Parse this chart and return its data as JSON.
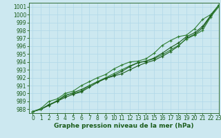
{
  "xlabel": "Graphe pression niveau de la mer (hPa)",
  "xlim": [
    -0.5,
    23
  ],
  "ylim": [
    987.5,
    1001.5
  ],
  "yticks": [
    988,
    989,
    990,
    991,
    992,
    993,
    994,
    995,
    996,
    997,
    998,
    999,
    1000,
    1001
  ],
  "xticks": [
    0,
    1,
    2,
    3,
    4,
    5,
    6,
    7,
    8,
    9,
    10,
    11,
    12,
    13,
    14,
    15,
    16,
    17,
    18,
    19,
    20,
    21,
    22,
    23
  ],
  "bg_color": "#cce8f0",
  "grid_color": "#b0d8e8",
  "line_color_dark": "#1a5c1a",
  "line_color_mid": "#2e7d32",
  "series": [
    [
      987.7,
      988.0,
      988.6,
      989.0,
      989.7,
      990.1,
      990.5,
      991.0,
      991.5,
      991.9,
      992.2,
      992.5,
      993.0,
      993.5,
      993.9,
      994.2,
      994.7,
      995.3,
      996.0,
      997.0,
      997.5,
      998.3,
      999.8,
      1001.2
    ],
    [
      987.7,
      988.0,
      988.5,
      989.1,
      989.8,
      990.0,
      990.3,
      991.0,
      991.5,
      992.0,
      992.5,
      993.0,
      993.5,
      993.9,
      994.1,
      994.4,
      994.9,
      995.5,
      996.1,
      996.9,
      997.4,
      998.0,
      999.7,
      1001.0
    ],
    [
      987.7,
      988.0,
      988.5,
      989.0,
      989.5,
      989.9,
      990.2,
      990.8,
      991.4,
      991.9,
      992.3,
      992.8,
      993.4,
      993.9,
      994.1,
      994.5,
      995.1,
      995.8,
      996.4,
      997.2,
      997.7,
      998.5,
      999.9,
      1001.2
    ],
    [
      987.7,
      988.1,
      989.0,
      989.3,
      990.0,
      990.3,
      991.0,
      991.5,
      992.0,
      992.4,
      993.1,
      993.6,
      994.0,
      994.1,
      994.4,
      995.1,
      996.1,
      996.7,
      997.2,
      997.4,
      998.2,
      999.4,
      1000.0,
      1001.2
    ]
  ],
  "marker": "+",
  "marker_size": 3,
  "linewidth": 0.8,
  "tick_fontsize": 5.5,
  "label_fontsize": 6.5,
  "label_fontweight": "bold",
  "tick_color": "#1a5c1a",
  "spine_color": "#1a5c1a"
}
